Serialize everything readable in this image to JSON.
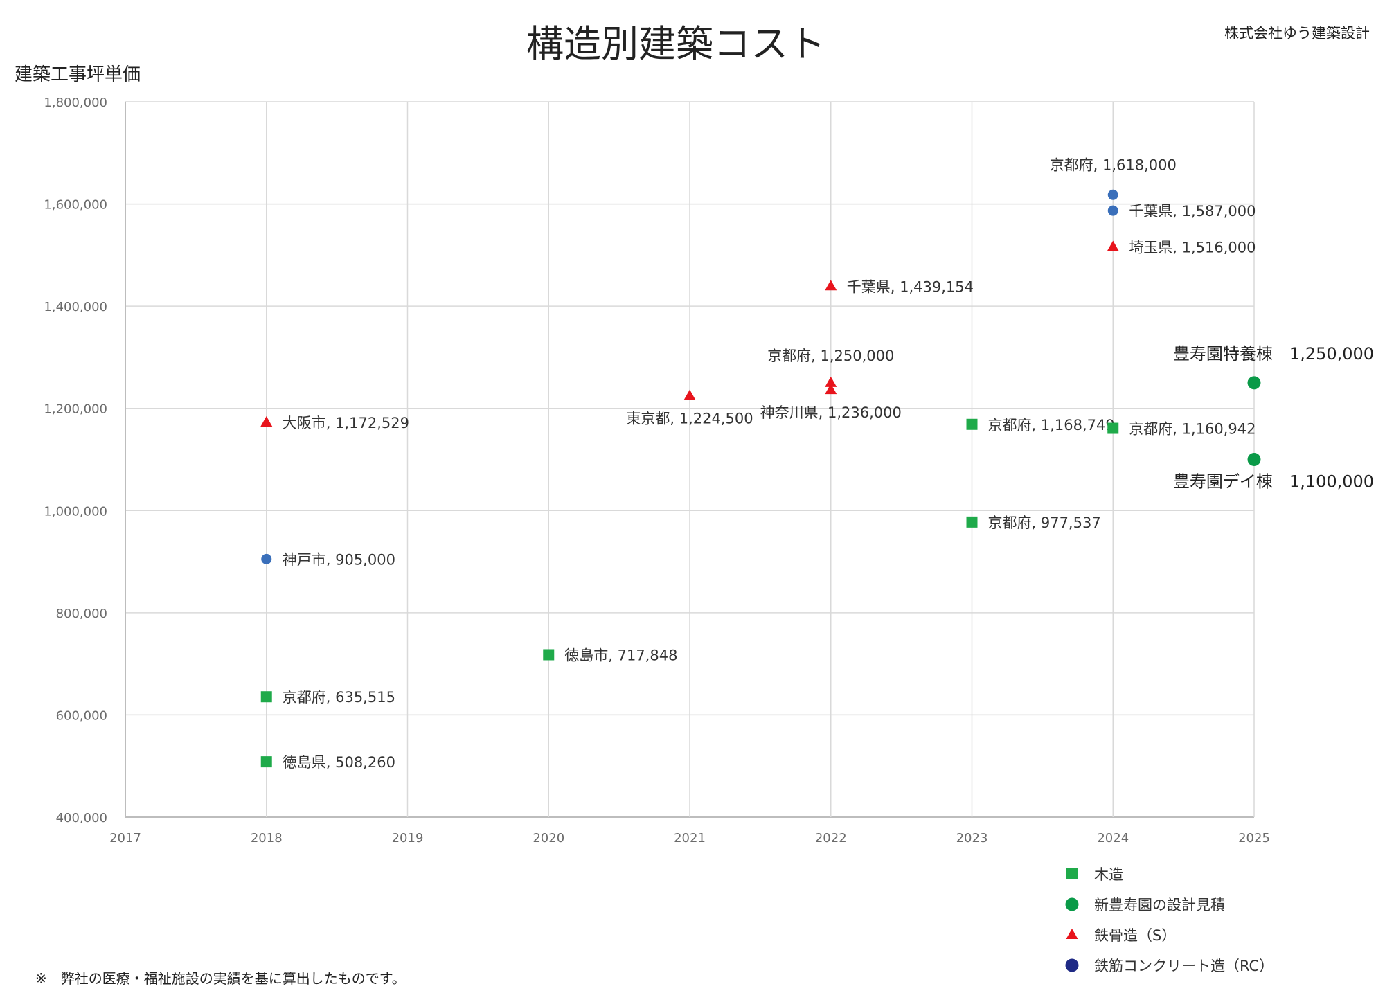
{
  "chart_data": {
    "type": "scatter",
    "title": "構造別建築コスト",
    "company": "株式会社ゆう建築設計",
    "ylabel": "建築工事坪単価",
    "xlabel": "",
    "xlim": [
      2017,
      2025
    ],
    "ylim": [
      400000,
      1800000
    ],
    "xticks": [
      "2017",
      "2018",
      "2019",
      "2020",
      "2021",
      "2022",
      "2023",
      "2024",
      "2025"
    ],
    "yticks": [
      "400,000",
      "600,000",
      "800,000",
      "1,000,000",
      "1,200,000",
      "1,400,000",
      "1,600,000",
      "1,800,000"
    ],
    "grid": true,
    "legend_position": "bottom-right",
    "footnote": "※　弊社の医療・福祉施設の実績を基に算出したものです。",
    "colors": {
      "wood": "#1faa4a",
      "new": "#0a9a48",
      "steel": "#e8141c",
      "rc": "#3a6fba",
      "rc_legend": "#1f2a85"
    },
    "series": [
      {
        "name": "木造",
        "key": "wood",
        "points": [
          {
            "x": 2018,
            "y": 635515,
            "label": "京都府, 635,515"
          },
          {
            "x": 2018,
            "y": 508260,
            "label": "徳島県, 508,260"
          },
          {
            "x": 2020,
            "y": 717848,
            "label": "徳島市, 717,848"
          },
          {
            "x": 2023,
            "y": 1168749,
            "label": "京都府, 1,168,749"
          },
          {
            "x": 2023,
            "y": 977537,
            "label": "京都府, 977,537"
          },
          {
            "x": 2024,
            "y": 1160942,
            "label": "京都府, 1,160,942"
          }
        ]
      },
      {
        "name": "新豊寿園の設計見積",
        "key": "new",
        "points": [
          {
            "x": 2025,
            "y": 1250000,
            "label": "豊寿園特養棟　1,250,000"
          },
          {
            "x": 2025,
            "y": 1100000,
            "label": "豊寿園デイ棟　1,100,000"
          }
        ]
      },
      {
        "name": "鉄骨造（S）",
        "key": "steel",
        "points": [
          {
            "x": 2018,
            "y": 1172529,
            "label": "大阪市, 1,172,529"
          },
          {
            "x": 2021,
            "y": 1224500,
            "label": "東京都, 1,224,500"
          },
          {
            "x": 2022,
            "y": 1439154,
            "label": "千葉県, 1,439,154"
          },
          {
            "x": 2022,
            "y": 1250000,
            "label": "京都府, 1,250,000"
          },
          {
            "x": 2022,
            "y": 1236000,
            "label": "神奈川県, 1,236,000"
          },
          {
            "x": 2024,
            "y": 1516000,
            "label": "埼玉県, 1,516,000"
          }
        ]
      },
      {
        "name": "鉄筋コンクリート造（RC）",
        "key": "rc",
        "points": [
          {
            "x": 2018,
            "y": 905000,
            "label": "神戸市, 905,000"
          },
          {
            "x": 2024,
            "y": 1618000,
            "label": "京都府, 1,618,000"
          },
          {
            "x": 2024,
            "y": 1587000,
            "label": "千葉県, 1,587,000"
          }
        ]
      }
    ]
  }
}
